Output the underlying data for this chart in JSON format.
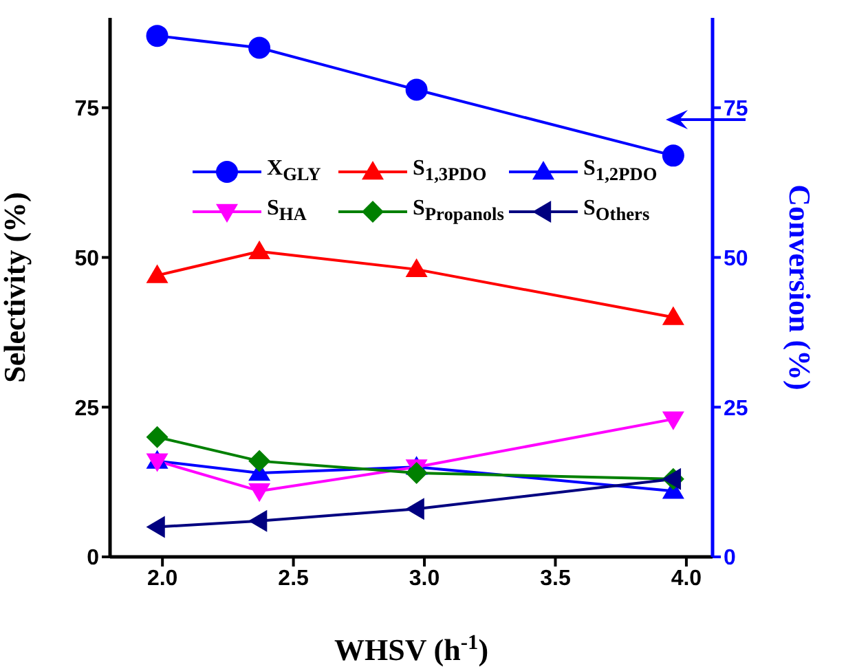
{
  "chart_data": {
    "type": "line",
    "xlabel": "WHSV (h$^{-1}$)",
    "ylabel": "Selectivity (%)",
    "y2label": "Conversion (%)",
    "x": [
      1.98,
      2.37,
      2.97,
      3.95
    ],
    "xlim": [
      1.8,
      4.1
    ],
    "xticks": [
      {
        "value": 2,
        "label": "2.0"
      },
      2.5,
      {
        "value": 3,
        "label": "3.0"
      },
      3.5,
      {
        "value": 4,
        "label": "4.0"
      }
    ],
    "ylim": [
      0,
      90
    ],
    "yticks": [
      0,
      25,
      50,
      75
    ],
    "y2lim": [
      0,
      90
    ],
    "y2ticks": [
      0,
      25,
      50,
      75
    ],
    "grid": false,
    "legend": "top",
    "line_style": "solid",
    "series": [
      {
        "name": "X$_{GLY}$",
        "color": "#0000ff",
        "values": [
          87,
          85,
          78,
          67
        ],
        "axis": "y2",
        "marker": "circle"
      },
      {
        "name": "S$_{1,3PDO}$",
        "color": "#ff0000",
        "values": [
          47,
          51,
          48,
          40
        ],
        "marker": "triangle"
      },
      {
        "name": "S$_{1,2PDO}$",
        "color": "#0000ff",
        "values": [
          16,
          14,
          15,
          11
        ],
        "marker": "triangle"
      },
      {
        "name": "S$_{HA}$",
        "color": "#ff00ff",
        "values": [
          16,
          11,
          15,
          23
        ],
        "marker": "triangle-down"
      },
      {
        "name": "S$_{Propanols}$",
        "color": "#008000",
        "values": [
          20,
          16,
          14,
          13
        ],
        "marker": "diamond"
      },
      {
        "name": "S$_{Others}$",
        "color": "#000080",
        "values": [
          5,
          6,
          8,
          13
        ],
        "marker": "triangle-left"
      }
    ]
  }
}
